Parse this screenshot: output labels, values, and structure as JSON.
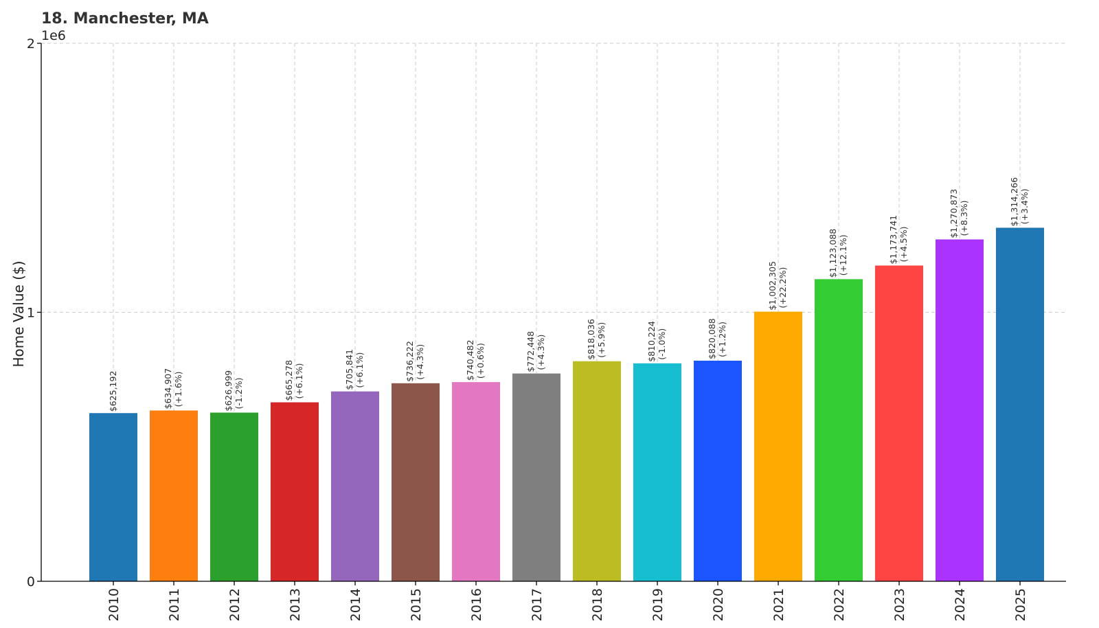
{
  "chart_data": {
    "type": "bar",
    "title": "18. Manchester, MA",
    "xlabel": "",
    "ylabel": "Home Value ($)",
    "y_offset_label": "1e6",
    "ylim": [
      0,
      2000000
    ],
    "yticks": [
      0,
      1000000,
      2000000
    ],
    "ytick_labels": [
      "0",
      "1",
      "2"
    ],
    "grid": true,
    "categories": [
      "2010",
      "2011",
      "2012",
      "2013",
      "2014",
      "2015",
      "2016",
      "2017",
      "2018",
      "2019",
      "2020",
      "2021",
      "2022",
      "2023",
      "2024",
      "2025"
    ],
    "values": [
      625192,
      634907,
      626999,
      665278,
      705841,
      736222,
      740482,
      772448,
      818036,
      810224,
      820088,
      1002305,
      1123088,
      1173741,
      1270873,
      1314266
    ],
    "value_labels": [
      "$625,192",
      "$634,907",
      "$626,999",
      "$665,278",
      "$705,841",
      "$736,222",
      "$740,482",
      "$772,448",
      "$818,036",
      "$810,224",
      "$820,088",
      "$1,002,305",
      "$1,123,088",
      "$1,173,741",
      "$1,270,873",
      "$1,314,266"
    ],
    "change_labels": [
      "",
      "(+1.6%)",
      "(-1.2%)",
      "(+6.1%)",
      "(+6.1%)",
      "(+4.3%)",
      "(+0.6%)",
      "(+4.3%)",
      "(+5.9%)",
      "(-1.0%)",
      "(+1.2%)",
      "(+22.2%)",
      "(+12.1%)",
      "(+4.5%)",
      "(+8.3%)",
      "(+3.4%)"
    ],
    "colors": [
      "#1f77b4",
      "#ff7f0e",
      "#2ca02c",
      "#d62728",
      "#9467bd",
      "#8c564b",
      "#e377c2",
      "#7f7f7f",
      "#bcbd22",
      "#17becf",
      "#1a55ff",
      "#ffaa00",
      "#33cc33",
      "#ff4444",
      "#aa33ff",
      "#1f77b4"
    ]
  }
}
